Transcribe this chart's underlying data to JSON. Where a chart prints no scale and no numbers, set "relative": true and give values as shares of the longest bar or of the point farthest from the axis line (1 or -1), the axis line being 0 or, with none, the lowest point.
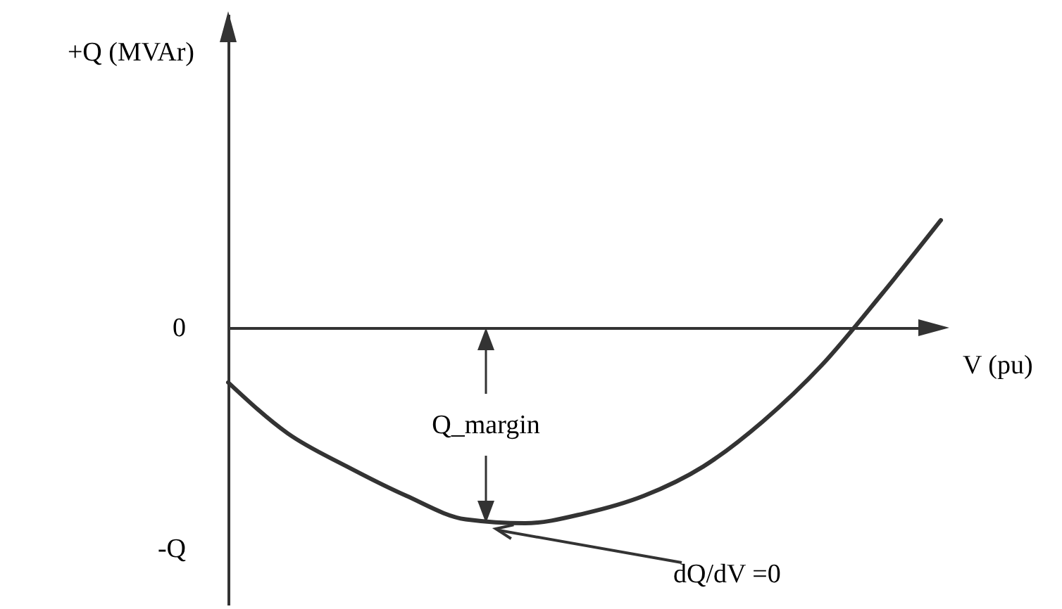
{
  "chart_data": {
    "type": "line",
    "relative": true,
    "xlabel": "V (pu)",
    "categories": [
      null,
      null,
      null,
      null,
      null,
      null,
      null,
      null,
      null,
      null,
      null,
      null,
      null
    ],
    "series": [
      {
        "color": "#333333",
        "values": [
          -0.28,
          -0.54,
          -0.71,
          -0.86,
          -0.98,
          -1,
          -0.95,
          -0.86,
          -0.71,
          -0.48,
          -0.19,
          0.17,
          0.55
        ]
      }
    ],
    "annotations": [
      "+Q (MVAr)",
      "0",
      "-Q",
      "Q_margin",
      "dQ/dV =0"
    ],
    "grid": false,
    "marker": "none",
    "line_style": "solid"
  }
}
